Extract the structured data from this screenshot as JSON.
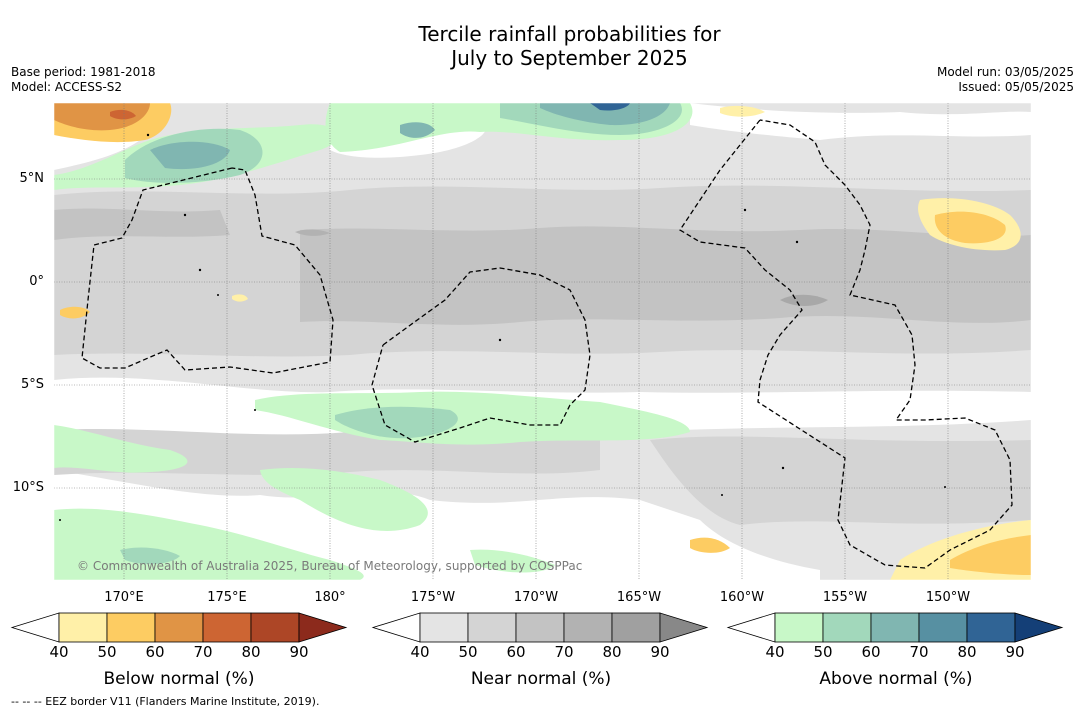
{
  "title_line1": "Tercile rainfall probabilities for",
  "title_line2": "July to September 2025",
  "meta_left": [
    "Base period: 1981-2018",
    "Model: ACCESS-S2"
  ],
  "meta_right": [
    "Model run: 03/05/2025",
    "Issued: 05/05/2025"
  ],
  "lon_labels": [
    "170°E",
    "175°E",
    "180°",
    "175°W",
    "170°W",
    "165°W",
    "160°W",
    "155°W",
    "150°W"
  ],
  "lat_labels": [
    "5°N",
    "0°",
    "5°S",
    "10°S"
  ],
  "watermark": "© Commonwealth of Australia 2025, Bureau of Meteorology, supported by COSPPac",
  "footnote": "--  --  -- EEZ border V11 (Flanders Marine Institute, 2019).",
  "colorbars": [
    {
      "title": "Below normal (%)",
      "ticks": [
        "40",
        "50",
        "60",
        "70",
        "80",
        "90"
      ],
      "colors": [
        "#fff0a8",
        "#fdcc62",
        "#e09445",
        "#cd6533",
        "#ad4626",
        "#8c2a1c"
      ]
    },
    {
      "title": "Near normal (%)",
      "ticks": [
        "40",
        "50",
        "60",
        "70",
        "80",
        "90"
      ],
      "colors": [
        "#e4e4e4",
        "#d4d4d4",
        "#c3c3c3",
        "#b2b2b2",
        "#a0a0a0",
        "#888888"
      ]
    },
    {
      "title": "Above normal (%)",
      "ticks": [
        "40",
        "50",
        "60",
        "70",
        "80",
        "90"
      ],
      "colors": [
        "#c8f8c8",
        "#a2d8bb",
        "#80b6b1",
        "#5790a2",
        "#306495",
        "#143f77"
      ]
    }
  ]
}
